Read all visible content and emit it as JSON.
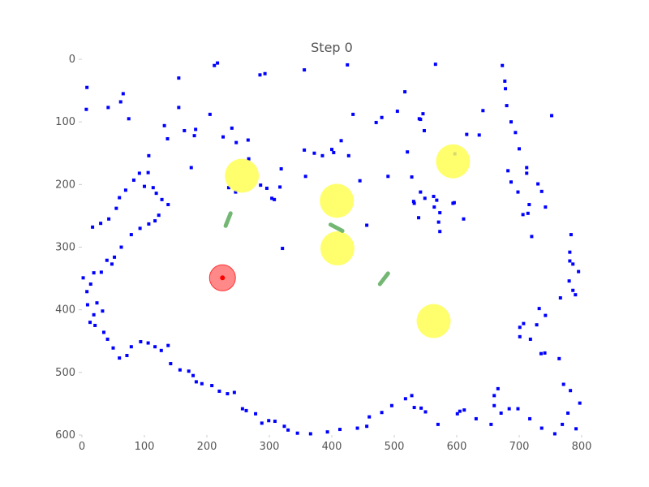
{
  "chart_data": {
    "type": "scatter",
    "title": "Step 0",
    "xlabel": "",
    "ylabel": "",
    "xlim": [
      0,
      800
    ],
    "ylim": [
      0,
      600
    ],
    "y_inverted": true,
    "grid": false,
    "x_ticks": [
      "0",
      "100",
      "200",
      "300",
      "400",
      "500",
      "600",
      "700",
      "800"
    ],
    "y_ticks": [
      "0",
      "100",
      "200",
      "300",
      "400",
      "500",
      "600"
    ],
    "colors": {
      "particles": "#0000ff",
      "yellow_circles": "#ffff55",
      "agent": "#ff5555",
      "agent_center": "#ff0000",
      "obstacles": "#5aaa5a",
      "text": "#555555"
    },
    "particles": [
      [
        8,
        45
      ],
      [
        7,
        80
      ],
      [
        42,
        77
      ],
      [
        62,
        68
      ],
      [
        66,
        55
      ],
      [
        75,
        95
      ],
      [
        155,
        30
      ],
      [
        155,
        77
      ],
      [
        212,
        10
      ],
      [
        217,
        6
      ],
      [
        205,
        88
      ],
      [
        182,
        112
      ],
      [
        180,
        122
      ],
      [
        164,
        114
      ],
      [
        132,
        106
      ],
      [
        137,
        127
      ],
      [
        107,
        154
      ],
      [
        106,
        181
      ],
      [
        175,
        173
      ],
      [
        240,
        110
      ],
      [
        247,
        133
      ],
      [
        226,
        124
      ],
      [
        285,
        25
      ],
      [
        293,
        23
      ],
      [
        266,
        129
      ],
      [
        267,
        159
      ],
      [
        246,
        212
      ],
      [
        235,
        205
      ],
      [
        286,
        201
      ],
      [
        296,
        206
      ],
      [
        304,
        222
      ],
      [
        308,
        224
      ],
      [
        317,
        204
      ],
      [
        319,
        175
      ],
      [
        321,
        302
      ],
      [
        356,
        17
      ],
      [
        356,
        145
      ],
      [
        358,
        187
      ],
      [
        372,
        150
      ],
      [
        385,
        154
      ],
      [
        400,
        144
      ],
      [
        403,
        149
      ],
      [
        415,
        130
      ],
      [
        425,
        9
      ],
      [
        427,
        154
      ],
      [
        434,
        88
      ],
      [
        445,
        194
      ],
      [
        456,
        265
      ],
      [
        471,
        101
      ],
      [
        480,
        93
      ],
      [
        490,
        187
      ],
      [
        505,
        83
      ],
      [
        517,
        52
      ],
      [
        521,
        148
      ],
      [
        528,
        188
      ],
      [
        532,
        230
      ],
      [
        531,
        227
      ],
      [
        539,
        253
      ],
      [
        542,
        212
      ],
      [
        549,
        222
      ],
      [
        563,
        219
      ],
      [
        564,
        236
      ],
      [
        568,
        225
      ],
      [
        573,
        245
      ],
      [
        571,
        260
      ],
      [
        573,
        275
      ],
      [
        566,
        8
      ],
      [
        548,
        114
      ],
      [
        540,
        95
      ],
      [
        542,
        96
      ],
      [
        546,
        87
      ],
      [
        594,
        230
      ],
      [
        597,
        151
      ],
      [
        596,
        229
      ],
      [
        611,
        255
      ],
      [
        616,
        120
      ],
      [
        636,
        121
      ],
      [
        642,
        82
      ],
      [
        673,
        10
      ],
      [
        677,
        35
      ],
      [
        678,
        47
      ],
      [
        680,
        74
      ],
      [
        687,
        100
      ],
      [
        694,
        117
      ],
      [
        700,
        143
      ],
      [
        712,
        173
      ],
      [
        712,
        182
      ],
      [
        682,
        178
      ],
      [
        687,
        196
      ],
      [
        698,
        212
      ],
      [
        706,
        248
      ],
      [
        716,
        232
      ],
      [
        730,
        199
      ],
      [
        736,
        211
      ],
      [
        742,
        236
      ],
      [
        714,
        246
      ],
      [
        720,
        283
      ],
      [
        752,
        90
      ],
      [
        783,
        280
      ],
      [
        781,
        308
      ],
      [
        781,
        322
      ],
      [
        786,
        327
      ],
      [
        795,
        339
      ],
      [
        780,
        354
      ],
      [
        786,
        369
      ],
      [
        790,
        376
      ],
      [
        766,
        381
      ],
      [
        732,
        398
      ],
      [
        742,
        409
      ],
      [
        728,
        424
      ],
      [
        707,
        422
      ],
      [
        701,
        428
      ],
      [
        701,
        443
      ],
      [
        718,
        447
      ],
      [
        735,
        470
      ],
      [
        741,
        469
      ],
      [
        764,
        478
      ],
      [
        771,
        519
      ],
      [
        782,
        529
      ],
      [
        797,
        549
      ],
      [
        778,
        565
      ],
      [
        769,
        583
      ],
      [
        791,
        590
      ],
      [
        736,
        589
      ],
      [
        757,
        598
      ],
      [
        717,
        574
      ],
      [
        698,
        558
      ],
      [
        684,
        558
      ],
      [
        671,
        565
      ],
      [
        666,
        526
      ],
      [
        660,
        537
      ],
      [
        660,
        553
      ],
      [
        655,
        583
      ],
      [
        631,
        574
      ],
      [
        612,
        560
      ],
      [
        605,
        562
      ],
      [
        601,
        566
      ],
      [
        570,
        583
      ],
      [
        550,
        563
      ],
      [
        543,
        557
      ],
      [
        532,
        556
      ],
      [
        528,
        537
      ],
      [
        518,
        542
      ],
      [
        496,
        553
      ],
      [
        480,
        564
      ],
      [
        460,
        571
      ],
      [
        456,
        586
      ],
      [
        441,
        589
      ],
      [
        413,
        591
      ],
      [
        393,
        595
      ],
      [
        366,
        598
      ],
      [
        345,
        597
      ],
      [
        330,
        592
      ],
      [
        324,
        586
      ],
      [
        309,
        578
      ],
      [
        299,
        577
      ],
      [
        288,
        581
      ],
      [
        278,
        566
      ],
      [
        263,
        561
      ],
      [
        257,
        558
      ],
      [
        244,
        532
      ],
      [
        233,
        534
      ],
      [
        220,
        530
      ],
      [
        208,
        521
      ],
      [
        192,
        518
      ],
      [
        183,
        515
      ],
      [
        178,
        505
      ],
      [
        171,
        498
      ],
      [
        157,
        496
      ],
      [
        142,
        486
      ],
      [
        138,
        457
      ],
      [
        127,
        465
      ],
      [
        117,
        459
      ],
      [
        106,
        453
      ],
      [
        94,
        451
      ],
      [
        79,
        459
      ],
      [
        72,
        473
      ],
      [
        60,
        477
      ],
      [
        50,
        461
      ],
      [
        41,
        447
      ],
      [
        35,
        436
      ],
      [
        21,
        425
      ],
      [
        13,
        420
      ],
      [
        19,
        408
      ],
      [
        33,
        402
      ],
      [
        24,
        389
      ],
      [
        9,
        392
      ],
      [
        8,
        371
      ],
      [
        14,
        359
      ],
      [
        2,
        349
      ],
      [
        19,
        341
      ],
      [
        31,
        340
      ],
      [
        48,
        327
      ],
      [
        40,
        321
      ],
      [
        52,
        316
      ],
      [
        63,
        300
      ],
      [
        79,
        280
      ],
      [
        93,
        270
      ],
      [
        107,
        263
      ],
      [
        117,
        258
      ],
      [
        123,
        249
      ],
      [
        138,
        232
      ],
      [
        128,
        224
      ],
      [
        119,
        214
      ],
      [
        114,
        205
      ],
      [
        100,
        203
      ],
      [
        92,
        182
      ],
      [
        83,
        193
      ],
      [
        70,
        209
      ],
      [
        60,
        221
      ],
      [
        55,
        238
      ],
      [
        43,
        255
      ],
      [
        30,
        262
      ],
      [
        17,
        268
      ]
    ],
    "yellow_circles": [
      [
        256,
        186
      ],
      [
        408,
        226
      ],
      [
        594,
        163
      ],
      [
        409,
        302
      ],
      [
        563,
        418
      ]
    ],
    "agent": [
      225,
      349
    ],
    "obstacles": [
      [
        [
          238,
          246
        ],
        [
          230,
          266
        ]
      ],
      [
        [
          398,
          264
        ],
        [
          417,
          274
        ]
      ],
      [
        [
          490,
          342
        ],
        [
          477,
          359
        ]
      ]
    ]
  }
}
